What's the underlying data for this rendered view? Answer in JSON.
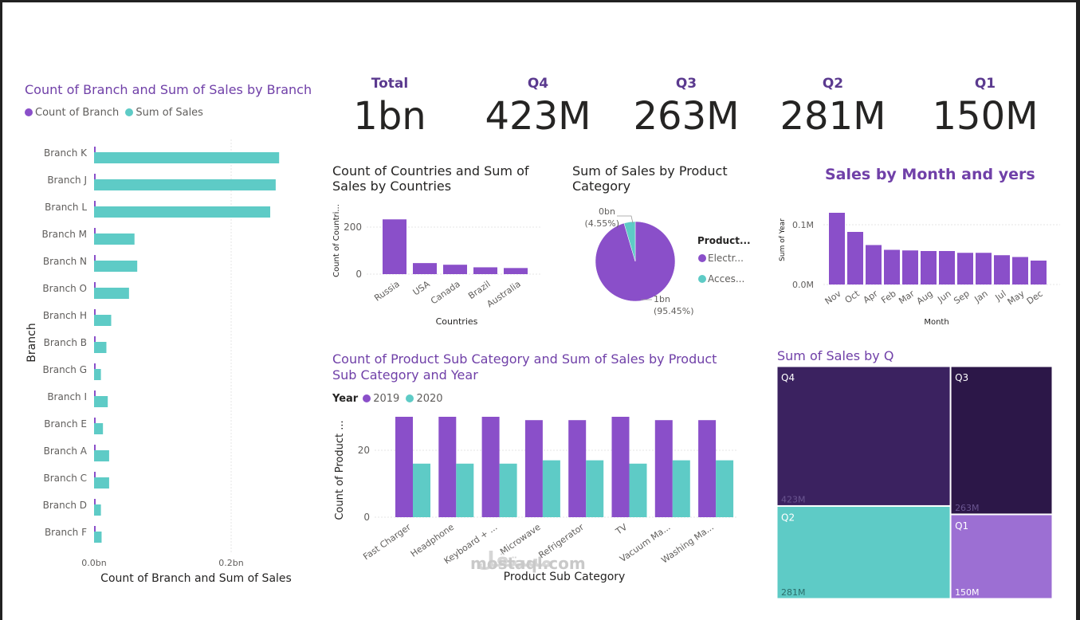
{
  "kpis": [
    {
      "label": "Total",
      "value": "1bn"
    },
    {
      "label": "Q4",
      "value": "423M"
    },
    {
      "label": "Q3",
      "value": "263M"
    },
    {
      "label": "Q2",
      "value": "281M"
    },
    {
      "label": "Q1",
      "value": "150M"
    }
  ],
  "branch_chart": {
    "title": "Count of Branch and Sum of Sales by Branch",
    "legend": [
      "Count of Branch",
      "Sum of Sales"
    ],
    "ylabel": "Branch",
    "xlabel": "Count of Branch and Sum of Sales",
    "xticks": [
      "0.0bn",
      "0.2bn"
    ]
  },
  "countries_chart": {
    "title": "Count of Countries and Sum of Sales by Countries",
    "ylabel": "Count of Countri...",
    "xlabel": "Countries",
    "yticks": [
      "200",
      "0"
    ]
  },
  "pie_chart": {
    "title": "Sum of Sales by Product Category",
    "legend_title": "Product...",
    "legend": [
      "Electr...",
      "Acces..."
    ],
    "label_small_1": "0bn",
    "label_small_2": "(4.55%)",
    "label_big_1": "1bn",
    "label_big_2": "(95.45%)"
  },
  "month_chart": {
    "title": "Sales by Month and yers",
    "ylabel": "Sum of Year",
    "xlabel": "Month",
    "yticks": [
      "0.1M",
      "0.0M"
    ]
  },
  "subcat_chart": {
    "title": "Count of Product Sub Category and Sum of Sales by Product Sub Category and Year",
    "legend_title": "Year",
    "legend": [
      "2019",
      "2020"
    ],
    "ylabel": "Count of Product ...",
    "xlabel": "Product Sub Category",
    "yticks": [
      "20",
      "0"
    ]
  },
  "treemap": {
    "title": "Sum of Sales by Q"
  },
  "watermark": {
    "latin": "mostaql.com",
    "arabic": "مستقل"
  },
  "colors": {
    "purple": "#8a4fc9",
    "teal": "#5ecbc6",
    "title": "#7040a8"
  },
  "chart_data": [
    {
      "type": "bar",
      "orientation": "horizontal",
      "title": "Count of Branch and Sum of Sales by Branch",
      "categories": [
        "Branch K",
        "Branch J",
        "Branch L",
        "Branch M",
        "Branch N",
        "Branch O",
        "Branch H",
        "Branch B",
        "Branch G",
        "Branch I",
        "Branch E",
        "Branch A",
        "Branch C",
        "Branch D",
        "Branch F"
      ],
      "series": [
        {
          "name": "Count of Branch",
          "values": [
            0,
            0,
            0,
            0,
            0,
            0,
            0,
            0,
            0,
            0,
            0,
            0,
            0,
            0,
            0
          ]
        },
        {
          "name": "Sum of Sales",
          "values": [
            0.27,
            0.265,
            0.257,
            0.059,
            0.063,
            0.051,
            0.025,
            0.018,
            0.01,
            0.02,
            0.013,
            0.022,
            0.022,
            0.01,
            0.011
          ]
        }
      ],
      "xlim": [
        0,
        0.3
      ]
    },
    {
      "type": "bar",
      "title": "Count of Countries and Sum of Sales by Countries",
      "categories": [
        "Russia",
        "USA",
        "Canada",
        "Brazil",
        "Australia"
      ],
      "values": [
        233,
        47,
        40,
        29,
        26
      ],
      "ylim": [
        0,
        260
      ]
    },
    {
      "type": "pie",
      "title": "Sum of Sales by Product Category",
      "categories": [
        "Electr...",
        "Acces..."
      ],
      "values": [
        95.45,
        4.55
      ]
    },
    {
      "type": "bar",
      "title": "Sales by Month and yers",
      "categories": [
        "Nov",
        "Oct",
        "Apr",
        "Feb",
        "Mar",
        "Aug",
        "Jun",
        "Sep",
        "Jan",
        "Jul",
        "May",
        "Dec"
      ],
      "values": [
        0.12,
        0.088,
        0.066,
        0.058,
        0.057,
        0.056,
        0.056,
        0.053,
        0.053,
        0.049,
        0.046,
        0.04
      ],
      "ylim": [
        0,
        0.13
      ]
    },
    {
      "type": "bar",
      "title": "Count of Product Sub Category and Sum of Sales by Product Sub Category and Year",
      "categories": [
        "Fast Charger",
        "Headphone",
        "Keyboard + ...",
        "Microwave",
        "Refrigerator",
        "TV",
        "Vacuum Ma...",
        "Washing Ma..."
      ],
      "series": [
        {
          "name": "2019",
          "values": [
            30,
            30,
            30,
            29,
            29,
            30,
            29,
            29
          ]
        },
        {
          "name": "2020",
          "values": [
            16,
            16,
            16,
            17,
            17,
            16,
            17,
            17
          ]
        }
      ],
      "ylim": [
        0,
        31
      ]
    },
    {
      "type": "treemap",
      "title": "Sum of Sales by Q",
      "categories": [
        "Q4",
        "Q3",
        "Q2",
        "Q1"
      ],
      "values": [
        423,
        263,
        281,
        150
      ],
      "value_labels": [
        "423M",
        "263M",
        "281M",
        "150M"
      ]
    }
  ]
}
